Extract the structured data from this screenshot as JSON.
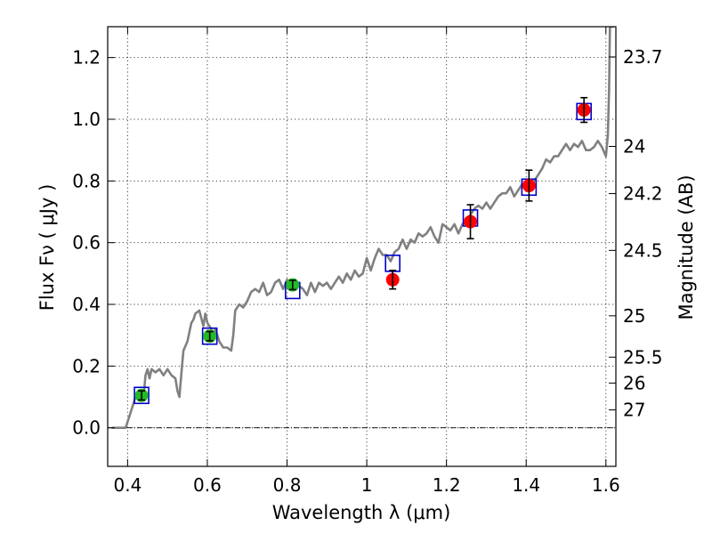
{
  "chart_data": {
    "type": "scatter",
    "xlabel": "Wavelength  λ (μm)",
    "ylabel": "Flux  Fν  ( μJy )",
    "y2label": "Magnitude (AB)",
    "xlim": [
      0.35,
      1.625
    ],
    "ylim": [
      -0.125,
      1.3
    ],
    "grid": true,
    "x_ticks": [
      0.4,
      0.6,
      0.8,
      1.0,
      1.2,
      1.4,
      1.6
    ],
    "x_tick_labels": [
      "0.4",
      "0.6",
      "0.8",
      "1",
      "1.2",
      "1.4",
      "1.6"
    ],
    "y_ticks": [
      0.0,
      0.2,
      0.4,
      0.6,
      0.8,
      1.0,
      1.2
    ],
    "y_tick_labels": [
      "0.0",
      "0.2",
      "0.4",
      "0.6",
      "0.8",
      "1.0",
      "1.2"
    ],
    "mag_ticks": [
      {
        "label": "23.7",
        "flux": 1.202
      },
      {
        "label": "24",
        "flux": 0.912
      },
      {
        "label": "24.2",
        "flux": 0.759
      },
      {
        "label": "24.5",
        "flux": 0.575
      },
      {
        "label": "25",
        "flux": 0.363
      },
      {
        "label": "25.5",
        "flux": 0.229
      },
      {
        "label": "26",
        "flux": 0.145
      },
      {
        "label": "27",
        "flux": 0.058
      }
    ],
    "model_spectrum": {
      "x": [
        0.36,
        0.395,
        0.41,
        0.42,
        0.43,
        0.44,
        0.445,
        0.45,
        0.455,
        0.46,
        0.47,
        0.48,
        0.49,
        0.5,
        0.51,
        0.52,
        0.525,
        0.53,
        0.535,
        0.54,
        0.55,
        0.56,
        0.565,
        0.57,
        0.58,
        0.59,
        0.595,
        0.6,
        0.61,
        0.615,
        0.62,
        0.63,
        0.64,
        0.65,
        0.66,
        0.665,
        0.67,
        0.68,
        0.69,
        0.7,
        0.71,
        0.72,
        0.73,
        0.74,
        0.75,
        0.76,
        0.77,
        0.78,
        0.79,
        0.8,
        0.81,
        0.82,
        0.83,
        0.84,
        0.85,
        0.86,
        0.87,
        0.88,
        0.89,
        0.9,
        0.91,
        0.92,
        0.93,
        0.94,
        0.95,
        0.96,
        0.97,
        0.98,
        0.99,
        1.0,
        1.01,
        1.02,
        1.03,
        1.04,
        1.05,
        1.06,
        1.07,
        1.08,
        1.09,
        1.1,
        1.11,
        1.12,
        1.13,
        1.14,
        1.15,
        1.16,
        1.17,
        1.18,
        1.19,
        1.2,
        1.21,
        1.22,
        1.23,
        1.24,
        1.25,
        1.26,
        1.27,
        1.28,
        1.29,
        1.3,
        1.31,
        1.32,
        1.33,
        1.34,
        1.35,
        1.36,
        1.37,
        1.38,
        1.39,
        1.4,
        1.41,
        1.42,
        1.43,
        1.44,
        1.45,
        1.46,
        1.47,
        1.48,
        1.49,
        1.5,
        1.51,
        1.52,
        1.53,
        1.54,
        1.55,
        1.56,
        1.57,
        1.58,
        1.59,
        1.6,
        1.605,
        1.608,
        1.61,
        1.615,
        1.62
      ],
      "y": [
        0.0,
        0.0,
        0.06,
        0.1,
        0.12,
        0.1,
        0.17,
        0.19,
        0.16,
        0.19,
        0.18,
        0.19,
        0.17,
        0.19,
        0.17,
        0.16,
        0.12,
        0.1,
        0.18,
        0.25,
        0.28,
        0.34,
        0.35,
        0.37,
        0.38,
        0.33,
        0.37,
        0.34,
        0.32,
        0.3,
        0.32,
        0.28,
        0.26,
        0.26,
        0.25,
        0.3,
        0.38,
        0.4,
        0.39,
        0.41,
        0.44,
        0.45,
        0.44,
        0.47,
        0.43,
        0.44,
        0.47,
        0.48,
        0.45,
        0.48,
        0.46,
        0.48,
        0.46,
        0.45,
        0.43,
        0.47,
        0.44,
        0.47,
        0.46,
        0.47,
        0.45,
        0.47,
        0.49,
        0.47,
        0.5,
        0.48,
        0.51,
        0.49,
        0.5,
        0.55,
        0.51,
        0.55,
        0.58,
        0.56,
        0.56,
        0.54,
        0.57,
        0.58,
        0.61,
        0.58,
        0.61,
        0.6,
        0.63,
        0.62,
        0.63,
        0.65,
        0.62,
        0.6,
        0.66,
        0.65,
        0.64,
        0.66,
        0.63,
        0.66,
        0.67,
        0.69,
        0.71,
        0.72,
        0.71,
        0.73,
        0.71,
        0.73,
        0.75,
        0.76,
        0.76,
        0.78,
        0.75,
        0.77,
        0.79,
        0.79,
        0.78,
        0.8,
        0.82,
        0.84,
        0.87,
        0.86,
        0.88,
        0.88,
        0.9,
        0.92,
        0.9,
        0.92,
        0.91,
        0.93,
        0.9,
        0.9,
        0.91,
        0.93,
        0.91,
        0.88,
        0.95,
        1.1,
        1.3,
        1.3,
        1.3
      ]
    },
    "series": [
      {
        "marker": "circle",
        "color": "#22bb22",
        "points": [
          {
            "x": 0.435,
            "y": 0.105,
            "yerr": 0.015
          },
          {
            "x": 0.606,
            "y": 0.297,
            "yerr": 0.015
          },
          {
            "x": 0.814,
            "y": 0.463,
            "yerr": 0.015
          }
        ]
      },
      {
        "marker": "circle",
        "color": "#ff0000",
        "points": [
          {
            "x": 1.065,
            "y": 0.48,
            "yerr": 0.03
          },
          {
            "x": 1.26,
            "y": 0.668,
            "yerr": 0.055
          },
          {
            "x": 1.407,
            "y": 0.785,
            "yerr": 0.05
          },
          {
            "x": 1.545,
            "y": 1.03,
            "yerr": 0.04
          }
        ]
      },
      {
        "marker": "square",
        "color": "#0000cc",
        "points": [
          {
            "x": 0.435,
            "y": 0.105
          },
          {
            "x": 0.606,
            "y": 0.297
          },
          {
            "x": 0.814,
            "y": 0.445
          },
          {
            "x": 1.065,
            "y": 0.533
          },
          {
            "x": 1.26,
            "y": 0.68
          },
          {
            "x": 1.407,
            "y": 0.78
          },
          {
            "x": 1.545,
            "y": 1.025
          }
        ]
      }
    ],
    "colors": {
      "spectrum": "#808080",
      "errorbar": "#000000",
      "zero_line": "#000000"
    }
  }
}
